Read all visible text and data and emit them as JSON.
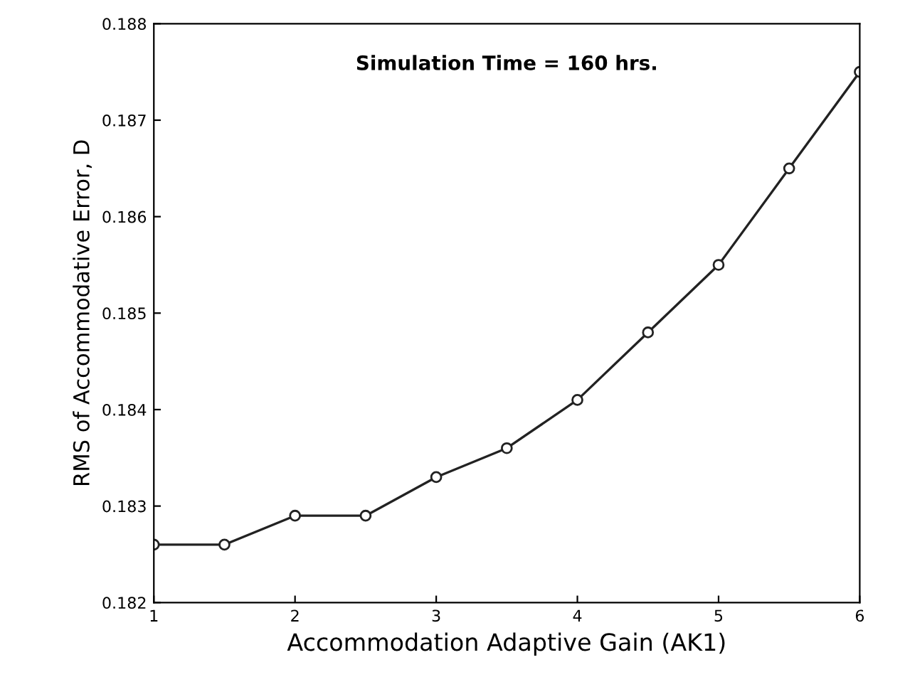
{
  "chart_data": {
    "type": "line",
    "xlabel": "Accommodation Adaptive Gain (AK1)",
    "ylabel": "RMS of Accommodative Error, D",
    "annotations": [
      "Simulation Time = 160 hrs."
    ],
    "x": [
      1,
      1.5,
      2,
      2.5,
      3,
      3.5,
      4,
      4.5,
      5,
      5.5,
      6
    ],
    "series": [
      {
        "color": "#222222",
        "values": [
          0.1826,
          0.1826,
          0.1829,
          0.1829,
          0.1833,
          0.1836,
          0.1841,
          0.1848,
          0.1855,
          0.1865,
          0.1875
        ]
      }
    ],
    "xlim": [
      1,
      6
    ],
    "ylim": [
      0.182,
      0.188
    ],
    "xticks": [
      1,
      2,
      3,
      4,
      5,
      6
    ],
    "yticks": [
      0.182,
      0.183,
      0.184,
      0.185,
      0.186,
      0.187,
      0.188
    ],
    "marker": "circle",
    "line_style": "solid",
    "grid": false,
    "legend": false
  }
}
